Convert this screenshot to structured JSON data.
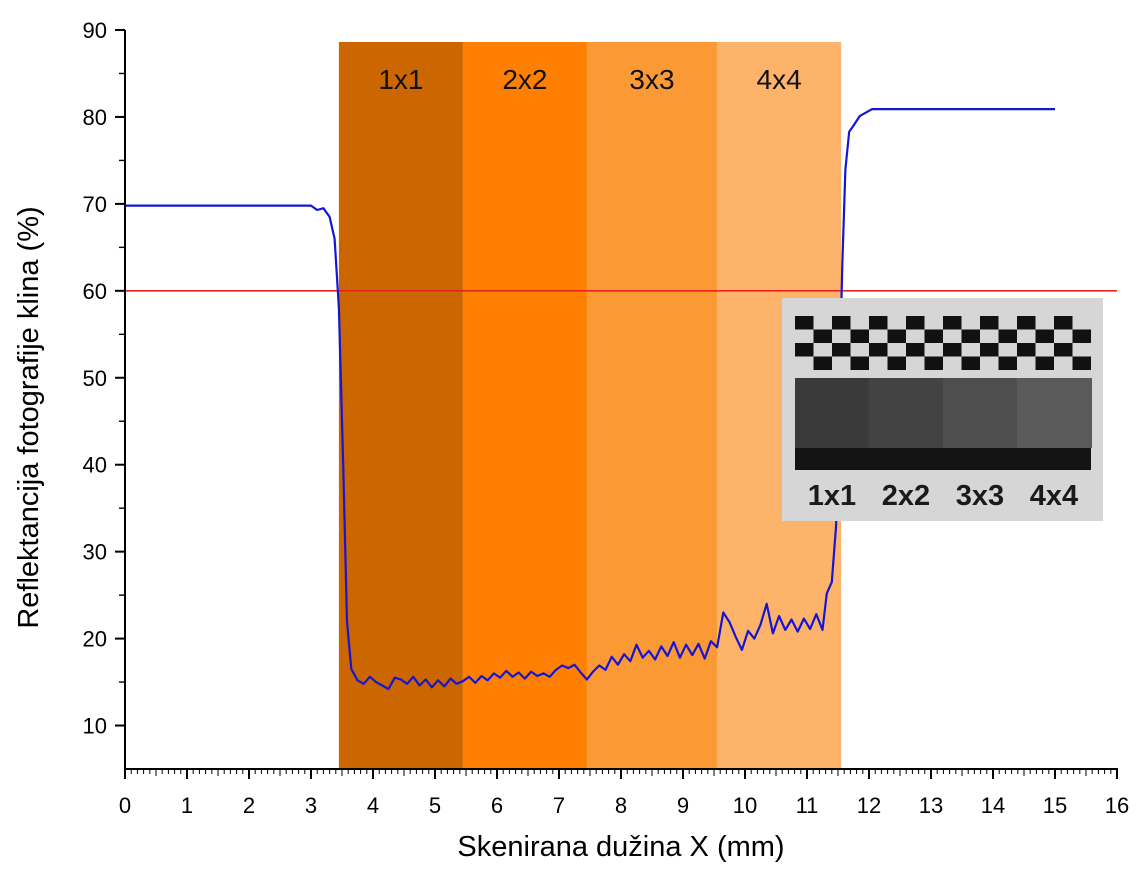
{
  "chart_data": {
    "type": "line",
    "xlabel": "Skenirana dužina X (mm)",
    "ylabel": "Reflektancija fotografije klina (%)",
    "xlim": [
      0,
      16
    ],
    "ylim": [
      5,
      90
    ],
    "xticks": [
      0,
      1,
      2,
      3,
      4,
      5,
      6,
      7,
      8,
      9,
      10,
      11,
      12,
      13,
      14,
      15,
      16
    ],
    "yticks": [
      10,
      20,
      30,
      40,
      50,
      60,
      70,
      80,
      90
    ],
    "grid": false,
    "threshold": {
      "y": 60,
      "color": "#e8231e"
    },
    "regions": [
      {
        "label": "1x1",
        "x0": 3.45,
        "x1": 5.45,
        "color": "#cc6600"
      },
      {
        "label": "2x2",
        "x0": 5.45,
        "x1": 7.45,
        "color": "#ff8000"
      },
      {
        "label": "3x3",
        "x0": 7.45,
        "x1": 9.55,
        "color": "#fb9a35"
      },
      {
        "label": "4x4",
        "x0": 9.55,
        "x1": 11.55,
        "color": "#fdb46a"
      }
    ],
    "series": [
      {
        "color": "#1515d6",
        "points": [
          [
            0,
            69.8
          ],
          [
            1,
            69.8
          ],
          [
            2,
            69.8
          ],
          [
            3.0,
            69.8
          ],
          [
            3.1,
            69.3
          ],
          [
            3.2,
            69.5
          ],
          [
            3.3,
            68.5
          ],
          [
            3.38,
            66.0
          ],
          [
            3.45,
            58.0
          ],
          [
            3.52,
            40.0
          ],
          [
            3.58,
            22.0
          ],
          [
            3.65,
            16.5
          ],
          [
            3.75,
            15.2
          ],
          [
            3.85,
            14.8
          ],
          [
            3.95,
            15.6
          ],
          [
            4.05,
            15.0
          ],
          [
            4.15,
            14.6
          ],
          [
            4.25,
            14.2
          ],
          [
            4.35,
            15.5
          ],
          [
            4.45,
            15.3
          ],
          [
            4.55,
            14.8
          ],
          [
            4.65,
            15.6
          ],
          [
            4.75,
            14.6
          ],
          [
            4.85,
            15.3
          ],
          [
            4.95,
            14.4
          ],
          [
            5.05,
            15.2
          ],
          [
            5.15,
            14.5
          ],
          [
            5.25,
            15.4
          ],
          [
            5.35,
            14.8
          ],
          [
            5.45,
            15.1
          ],
          [
            5.55,
            15.6
          ],
          [
            5.65,
            14.9
          ],
          [
            5.75,
            15.7
          ],
          [
            5.85,
            15.2
          ],
          [
            5.95,
            16.0
          ],
          [
            6.05,
            15.5
          ],
          [
            6.15,
            16.3
          ],
          [
            6.25,
            15.6
          ],
          [
            6.35,
            16.1
          ],
          [
            6.45,
            15.4
          ],
          [
            6.55,
            16.2
          ],
          [
            6.65,
            15.7
          ],
          [
            6.75,
            16.0
          ],
          [
            6.85,
            15.6
          ],
          [
            6.95,
            16.4
          ],
          [
            7.05,
            16.9
          ],
          [
            7.15,
            16.6
          ],
          [
            7.25,
            17.0
          ],
          [
            7.35,
            16.1
          ],
          [
            7.45,
            15.3
          ],
          [
            7.55,
            16.2
          ],
          [
            7.65,
            16.9
          ],
          [
            7.75,
            16.4
          ],
          [
            7.85,
            17.9
          ],
          [
            7.95,
            17.0
          ],
          [
            8.05,
            18.2
          ],
          [
            8.15,
            17.4
          ],
          [
            8.25,
            19.3
          ],
          [
            8.35,
            17.8
          ],
          [
            8.45,
            18.6
          ],
          [
            8.55,
            17.6
          ],
          [
            8.65,
            19.1
          ],
          [
            8.75,
            18.0
          ],
          [
            8.85,
            19.6
          ],
          [
            8.95,
            17.8
          ],
          [
            9.05,
            19.3
          ],
          [
            9.15,
            18.1
          ],
          [
            9.25,
            19.4
          ],
          [
            9.35,
            17.7
          ],
          [
            9.45,
            19.7
          ],
          [
            9.55,
            19.0
          ],
          [
            9.65,
            23.0
          ],
          [
            9.75,
            21.9
          ],
          [
            9.85,
            20.2
          ],
          [
            9.95,
            18.7
          ],
          [
            10.05,
            20.9
          ],
          [
            10.15,
            20.0
          ],
          [
            10.25,
            21.6
          ],
          [
            10.35,
            24.0
          ],
          [
            10.45,
            20.6
          ],
          [
            10.55,
            22.6
          ],
          [
            10.65,
            21.0
          ],
          [
            10.75,
            22.2
          ],
          [
            10.85,
            20.8
          ],
          [
            10.95,
            22.3
          ],
          [
            11.05,
            21.1
          ],
          [
            11.15,
            22.8
          ],
          [
            11.25,
            21.0
          ],
          [
            11.32,
            25.2
          ],
          [
            11.4,
            26.5
          ],
          [
            11.47,
            33.0
          ],
          [
            11.52,
            48.0
          ],
          [
            11.57,
            63.0
          ],
          [
            11.62,
            74.0
          ],
          [
            11.68,
            78.3
          ],
          [
            11.75,
            79.0
          ],
          [
            11.85,
            80.1
          ],
          [
            11.95,
            80.5
          ],
          [
            12.05,
            80.9
          ],
          [
            12.3,
            80.9
          ],
          [
            13,
            80.9
          ],
          [
            14,
            80.9
          ],
          [
            15,
            80.9
          ]
        ]
      }
    ],
    "inset": {
      "labels": [
        "1x1",
        "2x2",
        "3x3",
        "4x4"
      ]
    }
  }
}
